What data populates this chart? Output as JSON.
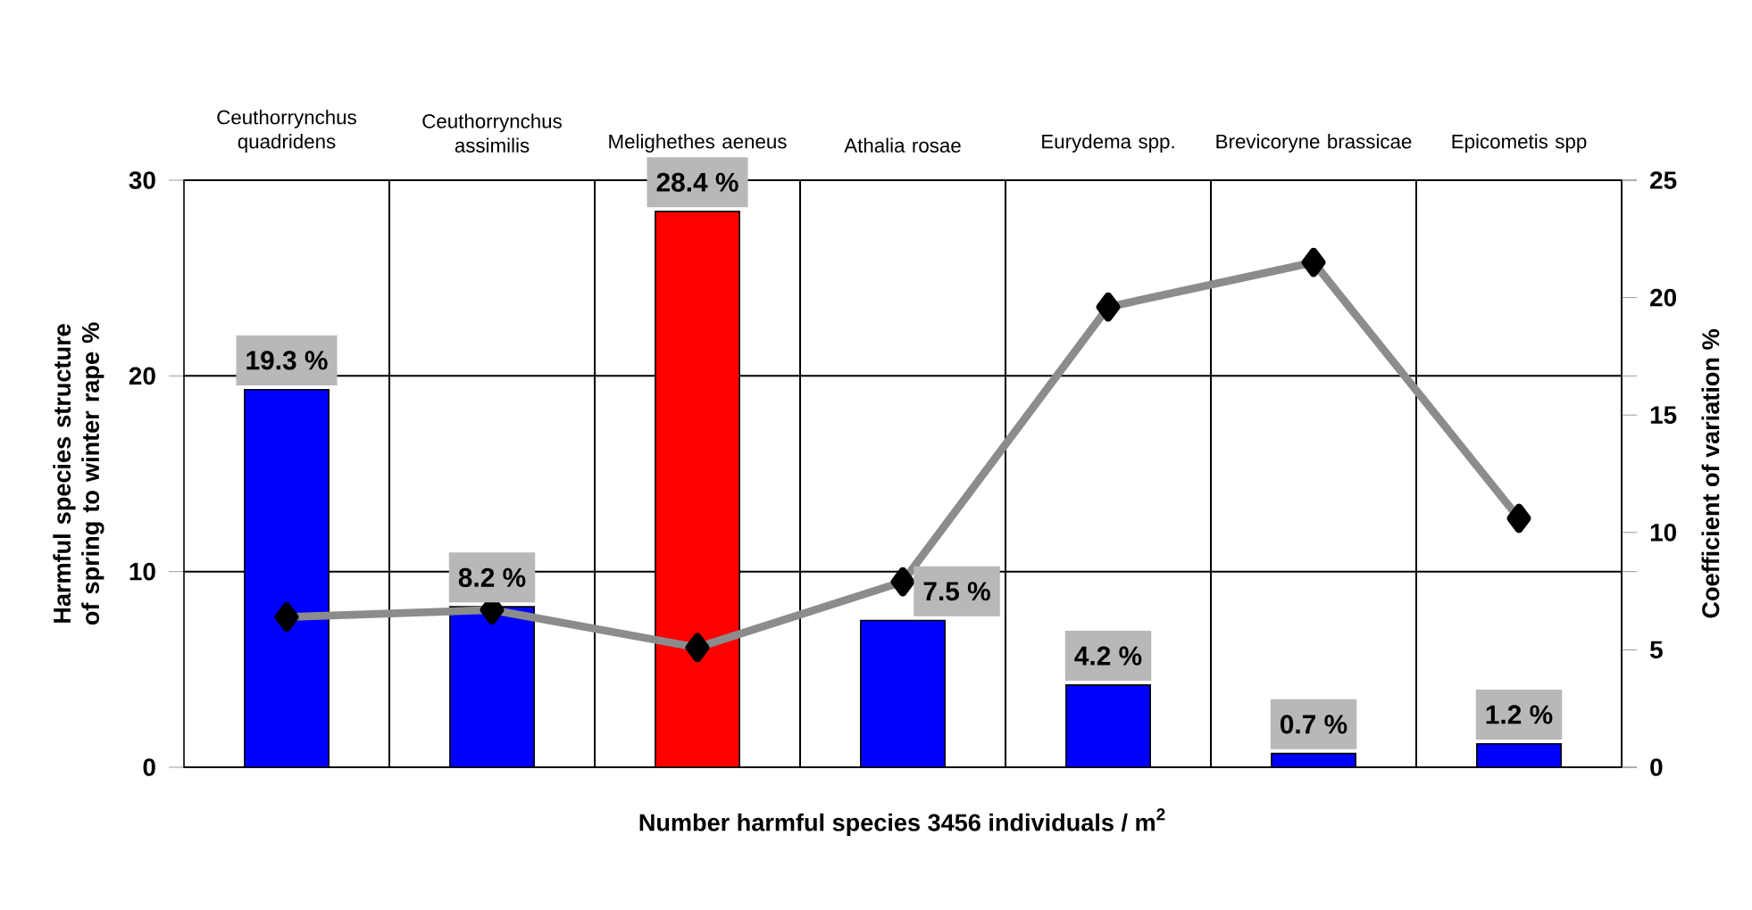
{
  "chart_data": {
    "type": "bar",
    "categories": [
      "Ceuthorrynchus quadridens",
      "Ceuthorrynchus assimilis",
      "Melighethes aeneus",
      "Athalia rosae",
      "Eurydema spp.",
      "Brevicoryne brassicae",
      "Epicometis spp"
    ],
    "xlabel": "Number harmful species   3456 individuals / m$^{2}$",
    "ylabel": "Harmful species structure of spring to winter rape %",
    "y2label": "Coefficient of variation %",
    "series": [
      {
        "type": "bar",
        "values": [
          19.3,
          8.2,
          28.4,
          7.5,
          4.2,
          0.7,
          1.2
        ],
        "colors": [
          "#0000ff",
          "#0000ff",
          "#ff0000",
          "#0000ff",
          "#0000ff",
          "#0000ff",
          "#0000ff"
        ],
        "value_labels": [
          "19.3 %",
          "8.2 %",
          "28.4 %",
          "7.5 %",
          "4.2 %",
          "0.7 %",
          "1.2 %"
        ]
      },
      {
        "type": "line",
        "axis": "y2",
        "color": "#8c8c8c",
        "marker": "diamond",
        "values": [
          6.4,
          6.7,
          5.1,
          7.9,
          19.6,
          21.5,
          10.6
        ]
      }
    ],
    "ylim": [
      0,
      30
    ],
    "yticks": [
      0,
      10,
      20,
      30
    ],
    "y2lim": [
      0,
      25
    ],
    "y2ticks": [
      0,
      5,
      10,
      15,
      20,
      25
    ],
    "grid": true
  }
}
